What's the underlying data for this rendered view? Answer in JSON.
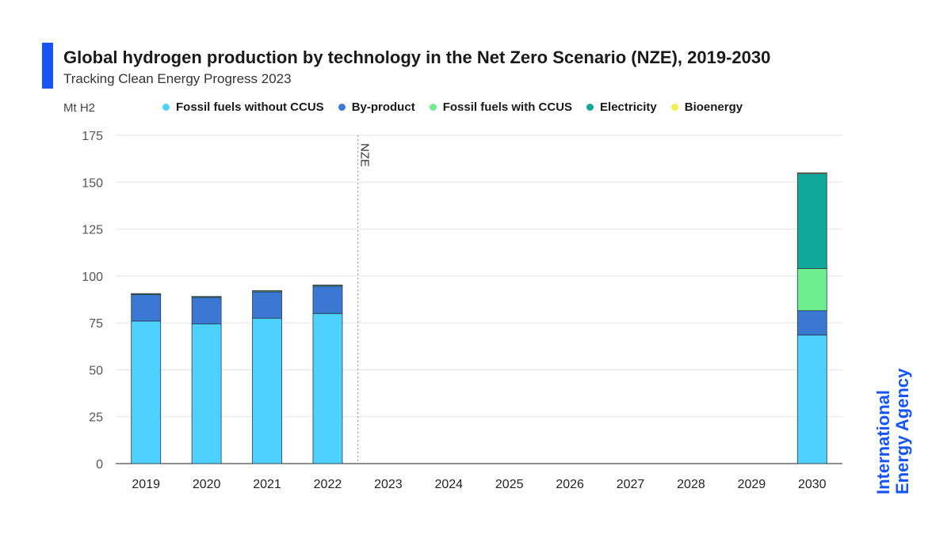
{
  "header": {
    "title": "Global hydrogen production by technology in the Net Zero Scenario (NZE), 2019-2030",
    "subtitle": "Tracking Clean Energy Progress 2023"
  },
  "colors": {
    "accent": "#1554f6",
    "fossil_no_ccus": "#4dd2ff",
    "by_product": "#3a78d4",
    "fossil_ccus": "#6ef090",
    "electricity": "#10a89a",
    "bioenergy": "#f3f04d"
  },
  "logo": {
    "line1": "International",
    "line2": "Energy Agency"
  },
  "chart_data": {
    "type": "bar",
    "stacked": true,
    "title": "Global hydrogen production by technology in the Net Zero Scenario (NZE), 2019-2030",
    "subtitle": "Tracking Clean Energy Progress 2023",
    "ylabel": "Mt H2",
    "xlabel": "",
    "ylim": [
      0,
      175
    ],
    "yticks": [
      0,
      25,
      50,
      75,
      100,
      125,
      150,
      175
    ],
    "grid": true,
    "legend_position": "top",
    "categories": [
      "2019",
      "2020",
      "2021",
      "2022",
      "2023",
      "2024",
      "2025",
      "2026",
      "2027",
      "2028",
      "2029",
      "2030"
    ],
    "series": [
      {
        "name": "Fossil fuels without CCUS",
        "color": "#4dd2ff",
        "values": [
          76,
          74.5,
          77.5,
          80,
          null,
          null,
          null,
          null,
          null,
          null,
          null,
          68.5
        ]
      },
      {
        "name": "By-product",
        "color": "#3a78d4",
        "values": [
          14,
          14,
          14,
          14.5,
          null,
          null,
          null,
          null,
          null,
          null,
          null,
          13
        ]
      },
      {
        "name": "Fossil fuels with CCUS",
        "color": "#6ef090",
        "values": [
          0.5,
          0.5,
          0.6,
          0.6,
          null,
          null,
          null,
          null,
          null,
          null,
          null,
          22.5
        ]
      },
      {
        "name": "Electricity",
        "color": "#10a89a",
        "values": [
          0.1,
          0.1,
          0.1,
          0.1,
          null,
          null,
          null,
          null,
          null,
          null,
          null,
          50.5
        ]
      },
      {
        "name": "Bioenergy",
        "color": "#f3f04d",
        "values": [
          0,
          0,
          0,
          0,
          null,
          null,
          null,
          null,
          null,
          null,
          null,
          0.5
        ]
      }
    ],
    "annotations": [
      {
        "text": "NZE",
        "type": "vertical-dashed-line",
        "between": [
          "2022",
          "2023"
        ]
      }
    ]
  }
}
